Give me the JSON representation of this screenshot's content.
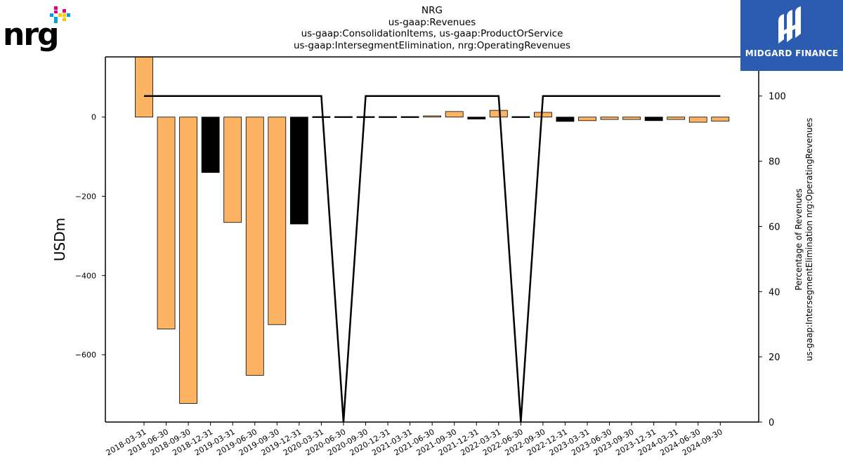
{
  "title_lines": [
    "NRG",
    "us-gaap:Revenues",
    "us-gaap:ConsolidationItems, us-gaap:ProductOrService",
    "us-gaap:IntersegmentElimination, nrg:OperatingRevenues"
  ],
  "brand": {
    "text": "nrg",
    "registered": "®"
  },
  "badge": {
    "text": "MIDGARD FINANCE",
    "color": "#2b5caf"
  },
  "colors": {
    "positive_bar": "#fdb462",
    "negative_bar": "#000000",
    "line": "#000000"
  },
  "chart_data": {
    "type": "bar",
    "categories": [
      "2018-03-31",
      "2018-06-30",
      "2018-09-30",
      "2018-12-31",
      "2019-03-31",
      "2019-06-30",
      "2019-09-30",
      "2019-12-31",
      "2020-03-31",
      "2020-06-30",
      "2020-09-30",
      "2020-12-31",
      "2021-03-31",
      "2021-06-30",
      "2021-09-30",
      "2021-12-31",
      "2022-03-31",
      "2022-06-30",
      "2022-09-30",
      "2022-12-31",
      "2023-03-31",
      "2023-06-30",
      "2023-09-30",
      "2023-12-31",
      "2024-03-31",
      "2024-06-30",
      "2024-09-30"
    ],
    "series": [
      {
        "values": [
          152,
          -535,
          -723,
          -140,
          -266,
          -652,
          -524,
          -270,
          -2,
          0,
          1,
          -2,
          0,
          3,
          14,
          -5,
          17,
          0,
          12,
          -11,
          -9,
          -6,
          -6,
          -9,
          -6,
          -13,
          -10
        ],
        "bar_colors": [
          "#fdb462",
          "#fdb462",
          "#fdb462",
          "#000000",
          "#fdb462",
          "#fdb462",
          "#fdb462",
          "#000000",
          "#000000",
          "#000000",
          "#000000",
          "#000000",
          "#000000",
          "#fdb462",
          "#fdb462",
          "#000000",
          "#fdb462",
          "#000000",
          "#fdb462",
          "#000000",
          "#fdb462",
          "#fdb462",
          "#fdb462",
          "#000000",
          "#fdb462",
          "#fdb462",
          "#fdb462"
        ],
        "axis": "left"
      },
      {
        "type": "line",
        "values": [
          100,
          100,
          100,
          100,
          100,
          100,
          100,
          100,
          100,
          0,
          100,
          100,
          100,
          100,
          100,
          100,
          100,
          0,
          100,
          100,
          100,
          100,
          100,
          100,
          100,
          100,
          100
        ],
        "axis": "right"
      }
    ],
    "ylabel": "USDm",
    "ylabel_right": [
      "Percentage of Revenues",
      "us-gaap:IntersegmentElimination nrg:OperatingRevenues"
    ],
    "yticks": [
      "0",
      "−200",
      "−400",
      "−600"
    ],
    "ytick_values": [
      0,
      -200,
      -400,
      -600
    ],
    "ylim": [
      -770,
      152
    ],
    "yticks_right": [
      "0",
      "20",
      "40",
      "60",
      "80",
      "100"
    ],
    "ytick_right_values": [
      0,
      20,
      40,
      60,
      80,
      100
    ],
    "ylim_right": [
      0,
      112
    ],
    "grid": false,
    "legend": "none"
  }
}
